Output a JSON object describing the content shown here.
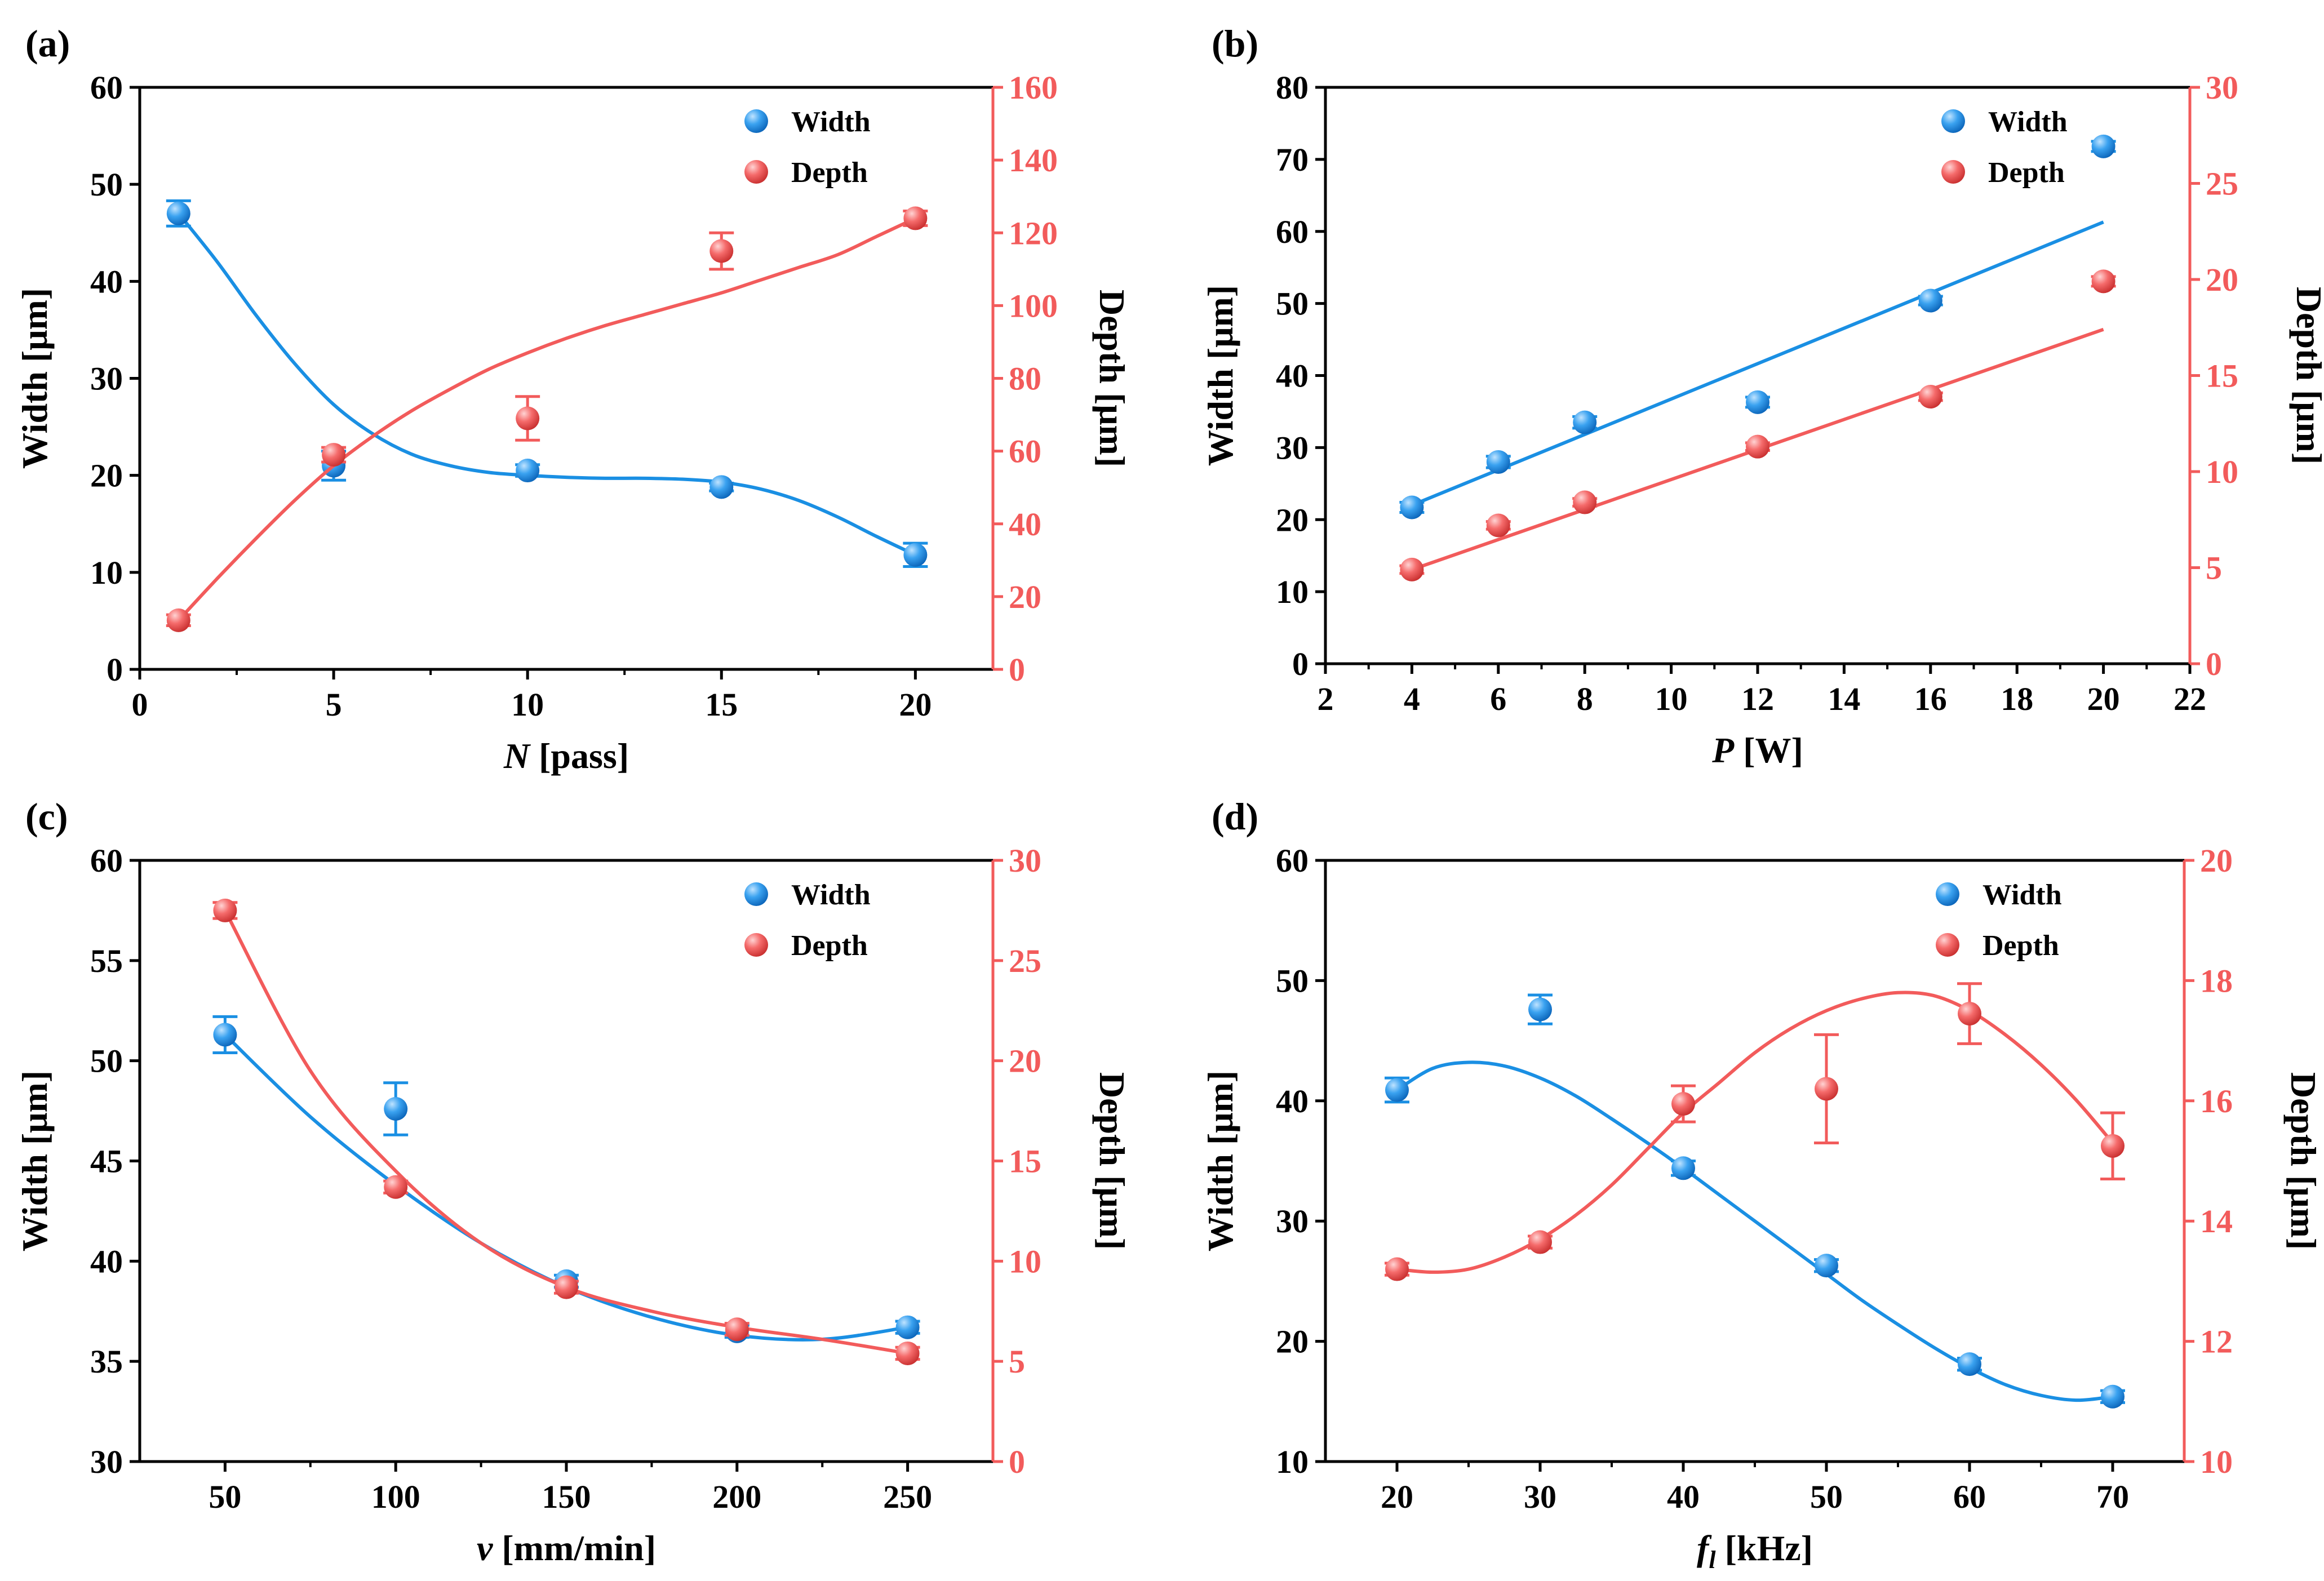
{
  "colors": {
    "width": "#1a8fe3",
    "depth": "#f25b5b",
    "axis": "#000000",
    "right_axis": "#f25b5b"
  },
  "chart_data": [
    {
      "panel": "(a)",
      "type": "scatter",
      "xlabel": "N",
      "xlabel_unit": " [pass]",
      "ylabel": "Width [μm]",
      "y2label": "Depth [μm]",
      "xlim": [
        0,
        22
      ],
      "xticks": [
        0,
        5,
        10,
        15,
        20
      ],
      "ylim": [
        0,
        60
      ],
      "yticks": [
        0,
        10,
        20,
        30,
        40,
        50,
        60
      ],
      "y2lim": [
        0,
        160
      ],
      "y2ticks": [
        0,
        20,
        40,
        60,
        80,
        100,
        120,
        140,
        160
      ],
      "legend_position": "top-right",
      "series": [
        {
          "name": "Width",
          "axis": "left",
          "x": [
            1,
            5,
            10,
            15,
            20
          ],
          "y": [
            47,
            21,
            20.5,
            18.8,
            11.8
          ],
          "err": [
            1.3,
            1.5,
            0.6,
            0.4,
            1.2
          ],
          "fit": {
            "x": [
              1,
              2,
              3,
              4,
              5,
              6,
              7,
              8,
              9,
              10,
              11,
              12,
              13,
              14,
              15,
              16,
              17,
              18,
              19,
              20
            ],
            "y": [
              47,
              42,
              36.5,
              31.5,
              27.3,
              24.3,
              22.2,
              21,
              20.3,
              20,
              19.8,
              19.7,
              19.7,
              19.6,
              19.3,
              18.6,
              17.4,
              15.7,
              13.7,
              11.8
            ]
          }
        },
        {
          "name": "Depth",
          "axis": "right",
          "x": [
            1,
            5,
            10,
            15,
            20
          ],
          "y": [
            13.5,
            59,
            69,
            115,
            124
          ],
          "err": [
            1.5,
            2,
            6,
            5,
            2
          ],
          "fit": {
            "x": [
              1,
              2,
              3,
              4,
              5,
              6,
              7,
              8,
              9,
              10,
              11,
              12,
              13,
              14,
              15,
              16,
              17,
              18,
              19,
              20
            ],
            "y": [
              13.5,
              25,
              36,
              46.5,
              56,
              64,
              71,
              77,
              82.5,
              87,
              91,
              94.5,
              97.5,
              100.5,
              103.5,
              107,
              110.5,
              114,
              119,
              124
            ]
          }
        }
      ]
    },
    {
      "panel": "(b)",
      "type": "scatter",
      "xlabel": "P",
      "xlabel_unit": " [W]",
      "ylabel": "Width [μm]",
      "y2label": "Depth [μm]",
      "xlim": [
        2,
        22
      ],
      "xticks": [
        2,
        4,
        6,
        8,
        10,
        12,
        14,
        16,
        18,
        20,
        22
      ],
      "ylim": [
        0,
        80
      ],
      "yticks": [
        0,
        10,
        20,
        30,
        40,
        50,
        60,
        70,
        80
      ],
      "y2lim": [
        0,
        30
      ],
      "y2ticks": [
        0,
        5,
        10,
        15,
        20,
        25,
        30
      ],
      "legend_position": "top-right",
      "series": [
        {
          "name": "Width",
          "axis": "left",
          "x": [
            4,
            6,
            8,
            12,
            16,
            20
          ],
          "y": [
            21.7,
            28,
            33.5,
            36.3,
            50.4,
            71.8
          ],
          "err": [
            0.7,
            0.8,
            0.8,
            0.7,
            0.6,
            0.7
          ],
          "fit": {
            "x": [
              4,
              20
            ],
            "y": [
              22,
              61.3
            ]
          }
        },
        {
          "name": "Depth",
          "axis": "right",
          "x": [
            4,
            6,
            8,
            12,
            16,
            20
          ],
          "y": [
            4.9,
            7.2,
            8.4,
            11.3,
            13.9,
            19.9
          ],
          "err": [
            0.2,
            0.2,
            0.2,
            0.2,
            0.2,
            0.25
          ],
          "fit": {
            "x": [
              4,
              20
            ],
            "y": [
              4.9,
              17.4
            ]
          }
        }
      ]
    },
    {
      "panel": "(c)",
      "type": "scatter",
      "xlabel": "v",
      "xlabel_unit": " [mm/min]",
      "ylabel": "Width [μm]",
      "y2label": "Depth [μm]",
      "xlim": [
        25,
        275
      ],
      "xticks": [
        50,
        100,
        150,
        200,
        250
      ],
      "ylim": [
        30,
        60
      ],
      "yticks": [
        30,
        35,
        40,
        45,
        50,
        55,
        60
      ],
      "y2lim": [
        0,
        30
      ],
      "y2ticks": [
        0,
        5,
        10,
        15,
        20,
        25,
        30
      ],
      "legend_position": "top-right",
      "series": [
        {
          "name": "Width",
          "axis": "left",
          "x": [
            50,
            100,
            150,
            200,
            250
          ],
          "y": [
            51.3,
            47.6,
            39,
            36.5,
            36.7
          ],
          "err": [
            0.9,
            1.3,
            0.3,
            0.3,
            0.3
          ],
          "fit": {
            "x": [
              50,
              75,
              100,
              125,
              150,
              175,
              200,
              225,
              250
            ],
            "y": [
              51.3,
              47.2,
              43.8,
              40.9,
              38.7,
              37.2,
              36.3,
              36.1,
              36.7
            ]
          }
        },
        {
          "name": "Depth",
          "axis": "right",
          "x": [
            50,
            100,
            150,
            200,
            250
          ],
          "y": [
            27.5,
            13.7,
            8.7,
            6.6,
            5.4
          ],
          "err": [
            0.4,
            0.3,
            0.3,
            0.3,
            0.3
          ],
          "fit": {
            "x": [
              50,
              75,
              100,
              125,
              150,
              175,
              200,
              225,
              250
            ],
            "y": [
              27.5,
              19.5,
              14.5,
              10.9,
              8.7,
              7.5,
              6.7,
              6.1,
              5.4
            ]
          }
        }
      ]
    },
    {
      "panel": "(d)",
      "type": "scatter",
      "xlabel": "f",
      "xlabel_sub": "l",
      "xlabel_unit": "  [kHz]",
      "ylabel": "Width [μm]",
      "y2label": "Depth [μm]",
      "xlim": [
        15,
        75
      ],
      "xticks": [
        20,
        30,
        40,
        50,
        60,
        70
      ],
      "ylim": [
        10,
        60
      ],
      "yticks": [
        10,
        20,
        30,
        40,
        50,
        60
      ],
      "y2lim": [
        10,
        20
      ],
      "y2ticks": [
        10,
        12,
        14,
        16,
        18,
        20
      ],
      "legend_position": "top-right",
      "series": [
        {
          "name": "Width",
          "axis": "left",
          "x": [
            20,
            30,
            40,
            50,
            60,
            70
          ],
          "y": [
            40.9,
            47.6,
            34.4,
            26.3,
            18.1,
            15.4
          ],
          "err": [
            1,
            1.2,
            0.6,
            0.5,
            0.5,
            0.5
          ],
          "fit": {
            "x": [
              20,
              22.5,
              25,
              27.5,
              30,
              32.5,
              35,
              37.5,
              40,
              42.5,
              45,
              47.5,
              50,
              52.5,
              55,
              57.5,
              60,
              62.5,
              65,
              67.5,
              70
            ],
            "y": [
              40.9,
              42.7,
              43.2,
              42.9,
              41.9,
              40.4,
              38.5,
              36.5,
              34.4,
              32.2,
              30,
              27.8,
              25.6,
              23.4,
              21.4,
              19.5,
              17.8,
              16.4,
              15.5,
              15.1,
              15.4
            ]
          }
        },
        {
          "name": "Depth",
          "axis": "right",
          "x": [
            20,
            30,
            40,
            50,
            60,
            70
          ],
          "y": [
            13.2,
            13.65,
            15.95,
            16.2,
            17.45,
            15.25
          ],
          "err": [
            0.1,
            0.1,
            0.3,
            0.9,
            0.5,
            0.55
          ],
          "fit": {
            "x": [
              20,
              22.5,
              25,
              27.5,
              30,
              32.5,
              35,
              37.5,
              40,
              42.5,
              45,
              47.5,
              50,
              52.5,
              55,
              57.5,
              60,
              62.5,
              65,
              67.5,
              70
            ],
            "y": [
              13.2,
              13.15,
              13.2,
              13.4,
              13.7,
              14.1,
              14.6,
              15.2,
              15.8,
              16.3,
              16.8,
              17.2,
              17.5,
              17.7,
              17.8,
              17.75,
              17.5,
              17.1,
              16.6,
              16,
              15.3
            ]
          }
        }
      ]
    }
  ]
}
